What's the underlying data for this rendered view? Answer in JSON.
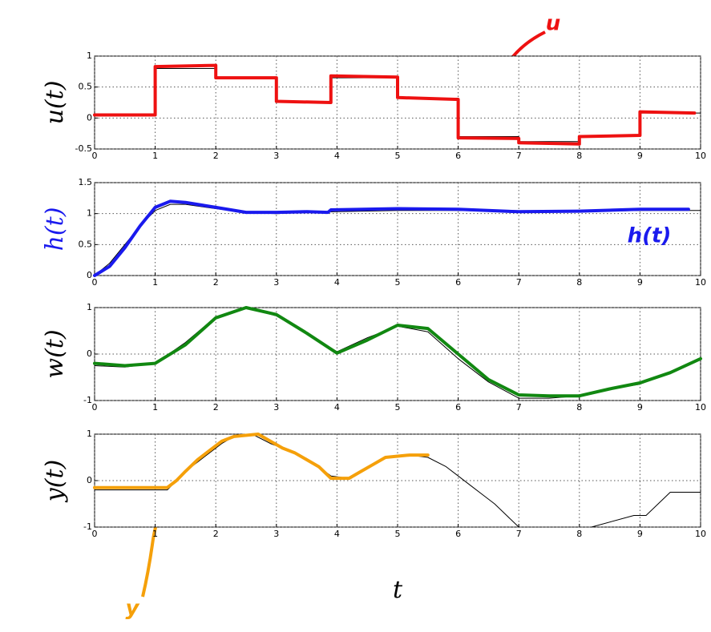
{
  "chart_data": [
    {
      "type": "line",
      "ylabel": "u(t)",
      "ylabel_color": "#000000",
      "xlim": [
        0,
        10
      ],
      "ylim": [
        -0.5,
        1
      ],
      "xticks": [
        0,
        1,
        2,
        3,
        4,
        5,
        6,
        7,
        8,
        9,
        10
      ],
      "yticks": [
        -0.5,
        0,
        0.5,
        1
      ],
      "grid": true,
      "annotation": "u",
      "annotation_color": "#ee1111",
      "series": [
        {
          "color": "#000000",
          "width": 1,
          "x": [
            0,
            1,
            1,
            2,
            2,
            3,
            3,
            3.9,
            3.9,
            5,
            5,
            6,
            6,
            7,
            7,
            8,
            8,
            9,
            9,
            10
          ],
          "values": [
            0.05,
            0.05,
            0.8,
            0.8,
            0.65,
            0.65,
            0.27,
            0.27,
            0.65,
            0.65,
            0.32,
            0.32,
            -0.3,
            -0.3,
            -0.38,
            -0.38,
            -0.3,
            -0.3,
            0.08,
            0.08
          ]
        },
        {
          "color": "#ee1111",
          "width": 4,
          "x": [
            0,
            1,
            1,
            2,
            2,
            3,
            3,
            3.9,
            3.9,
            5,
            5,
            6,
            6,
            7,
            7,
            8,
            8,
            9,
            9,
            9.9
          ],
          "values": [
            0.05,
            0.05,
            0.83,
            0.85,
            0.65,
            0.65,
            0.27,
            0.25,
            0.68,
            0.66,
            0.33,
            0.3,
            -0.32,
            -0.33,
            -0.4,
            -0.42,
            -0.3,
            -0.28,
            0.1,
            0.08
          ]
        }
      ]
    },
    {
      "type": "line",
      "ylabel": "h(t)",
      "ylabel_color": "#1a1aee",
      "xlim": [
        0,
        10
      ],
      "ylim": [
        0,
        1.5
      ],
      "xticks": [
        0,
        1,
        2,
        3,
        4,
        5,
        6,
        7,
        8,
        9,
        10
      ],
      "yticks": [
        0,
        0.5,
        1,
        1.5
      ],
      "grid": true,
      "annotation": "h(t)",
      "annotation_color": "#1a1aee",
      "series": [
        {
          "color": "#000000",
          "width": 1,
          "x": [
            0,
            0.25,
            0.5,
            0.75,
            1,
            1.25,
            1.5,
            2,
            2.5,
            3,
            3.5,
            4,
            5,
            6,
            7,
            8,
            9,
            10
          ],
          "values": [
            0,
            0.2,
            0.5,
            0.8,
            1.05,
            1.15,
            1.15,
            1.08,
            1.02,
            1.0,
            1.02,
            1.03,
            1.05,
            1.05,
            1.03,
            1.03,
            1.05,
            1.05
          ]
        },
        {
          "color": "#1a1aee",
          "width": 4,
          "x": [
            0,
            0.25,
            0.5,
            0.75,
            1,
            1.25,
            1.5,
            2,
            2.5,
            3,
            3.5,
            3.85,
            3.9,
            5,
            6,
            7,
            8,
            9,
            9.8
          ],
          "values": [
            0,
            0.15,
            0.45,
            0.8,
            1.1,
            1.2,
            1.18,
            1.1,
            1.02,
            1.02,
            1.03,
            1.02,
            1.06,
            1.08,
            1.07,
            1.03,
            1.04,
            1.07,
            1.07
          ]
        }
      ]
    },
    {
      "type": "line",
      "ylabel": "w(t)",
      "ylabel_color": "#000000",
      "xlim": [
        0,
        10
      ],
      "ylim": [
        -1,
        1
      ],
      "xticks": [
        0,
        1,
        2,
        3,
        4,
        5,
        6,
        7,
        8,
        9,
        10
      ],
      "yticks": [
        -1,
        0,
        1
      ],
      "grid": true,
      "series": [
        {
          "color": "#000000",
          "width": 1,
          "x": [
            0,
            0.5,
            1,
            1.5,
            2,
            2.5,
            3,
            3.5,
            4,
            4.5,
            5,
            5.5,
            6,
            6.5,
            7,
            7.5,
            8,
            8.5,
            9,
            9.5,
            10
          ],
          "values": [
            -0.25,
            -0.28,
            -0.2,
            0.25,
            0.8,
            1.0,
            0.82,
            0.45,
            0.05,
            0.35,
            0.6,
            0.48,
            -0.1,
            -0.6,
            -0.95,
            -0.95,
            -0.9,
            -0.75,
            -0.65,
            -0.4,
            -0.08
          ]
        },
        {
          "color": "#118811",
          "width": 4,
          "x": [
            0,
            0.5,
            1,
            1.5,
            2,
            2.5,
            3,
            3.5,
            4,
            4.5,
            5,
            5.5,
            6,
            6.5,
            7,
            7.5,
            8,
            8.5,
            9,
            9.5,
            10
          ],
          "values": [
            -0.2,
            -0.25,
            -0.2,
            0.2,
            0.78,
            1.0,
            0.85,
            0.45,
            0.02,
            0.3,
            0.62,
            0.55,
            0.0,
            -0.55,
            -0.88,
            -0.9,
            -0.9,
            -0.75,
            -0.62,
            -0.4,
            -0.1
          ]
        }
      ]
    },
    {
      "type": "line",
      "ylabel": "y(t)",
      "ylabel_color": "#000000",
      "xlabel": "t",
      "xlim": [
        0,
        10
      ],
      "ylim": [
        -1,
        1
      ],
      "xticks": [
        0,
        1,
        2,
        3,
        4,
        5,
        6,
        7,
        8,
        9,
        10
      ],
      "yticks": [
        -1,
        0,
        1
      ],
      "grid": true,
      "annotation": "y",
      "annotation_color": "#f5a00a",
      "series": [
        {
          "color": "#000000",
          "width": 1,
          "x": [
            0,
            1.2,
            1.35,
            1.5,
            1.7,
            1.9,
            2.1,
            2.3,
            2.6,
            2.9,
            3.1,
            3.3,
            3.5,
            3.7,
            3.9,
            4.2,
            4.4,
            4.6,
            4.8,
            5.2,
            5.5,
            5.8,
            6.0,
            6.2,
            6.4,
            6.6,
            6.8,
            7.0,
            7.5,
            8.2,
            8.9,
            9.1,
            9.3,
            9.5,
            10
          ],
          "values": [
            -0.2,
            -0.2,
            0,
            0.2,
            0.4,
            0.6,
            0.8,
            0.95,
            1,
            0.8,
            0.7,
            0.6,
            0.45,
            0.3,
            0.1,
            0.05,
            0.2,
            0.35,
            0.5,
            0.55,
            0.5,
            0.3,
            0.1,
            -0.1,
            -0.3,
            -0.5,
            -0.75,
            -1,
            null,
            -1,
            -0.75,
            -0.75,
            -0.5,
            -0.25,
            -0.25
          ]
        },
        {
          "color": "#f5a00a",
          "width": 4,
          "x": [
            0,
            1.2,
            1.35,
            1.5,
            1.7,
            1.9,
            2.1,
            2.3,
            2.7,
            2.9,
            3.1,
            3.3,
            3.5,
            3.7,
            3.9,
            4.2,
            4.4,
            4.6,
            4.8,
            5.2,
            5.5
          ],
          "values": [
            -0.15,
            -0.15,
            0,
            0.2,
            0.45,
            0.65,
            0.85,
            0.95,
            1,
            0.85,
            0.7,
            0.6,
            0.45,
            0.3,
            0.05,
            0.05,
            0.2,
            0.35,
            0.5,
            0.55,
            0.55
          ]
        }
      ]
    }
  ]
}
